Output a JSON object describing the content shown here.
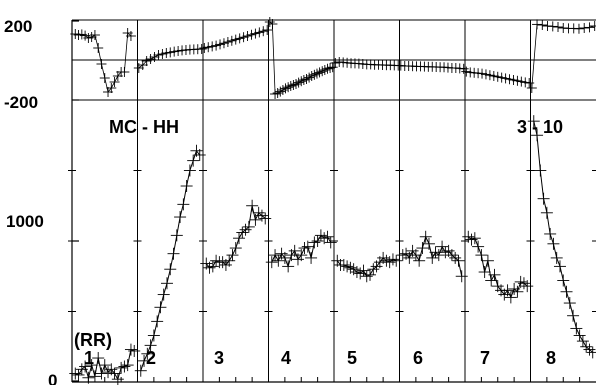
{
  "chart_data": {
    "type": "scatter",
    "title": "MC - HH",
    "corner_label": "3 - 10",
    "annotation": "(RR)",
    "top_panel": {
      "yticks": [
        "200",
        "-200"
      ],
      "ylim": [
        -200,
        200
      ],
      "panels": [
        {
          "x": [
            0.05,
            0.1,
            0.15,
            0.2,
            0.25,
            0.3,
            0.35,
            0.4,
            0.45,
            0.5,
            0.55,
            0.6,
            0.65,
            0.7,
            0.75,
            0.8,
            0.85,
            0.9
          ],
          "y": [
            130,
            125,
            128,
            122,
            110,
            115,
            125,
            60,
            -20,
            -90,
            -160,
            -140,
            -110,
            -80,
            -60,
            -60,
            135,
            120
          ]
        },
        {
          "x": [
            0.02,
            0.08,
            0.14,
            0.2,
            0.26,
            0.32,
            0.38,
            0.44,
            0.5,
            0.56,
            0.62,
            0.68,
            0.74,
            0.8,
            0.86,
            0.92,
            0.98
          ],
          "y": [
            -40,
            -25,
            -5,
            5,
            15,
            25,
            30,
            35,
            38,
            42,
            45,
            48,
            50,
            52,
            53,
            54,
            55
          ]
        },
        {
          "x": [
            0.02,
            0.08,
            0.14,
            0.2,
            0.26,
            0.32,
            0.38,
            0.44,
            0.5,
            0.56,
            0.62,
            0.68,
            0.74,
            0.8,
            0.86,
            0.92,
            0.98
          ],
          "y": [
            60,
            64,
            68,
            72,
            78,
            84,
            90,
            96,
            102,
            108,
            114,
            120,
            126,
            132,
            138,
            144,
            150
          ]
        },
        {
          "x": [
            0.02,
            0.06,
            0.1,
            0.14,
            0.18,
            0.22,
            0.26,
            0.3,
            0.34,
            0.38,
            0.42,
            0.46,
            0.5,
            0.54,
            0.58,
            0.62,
            0.66,
            0.7,
            0.74,
            0.78,
            0.82,
            0.86,
            0.9,
            0.94,
            0.98
          ],
          "y": [
            190,
            180,
            -170,
            -165,
            -158,
            -150,
            -142,
            -136,
            -130,
            -125,
            -120,
            -113,
            -106,
            -100,
            -95,
            -88,
            -80,
            -74,
            -68,
            -62,
            -56,
            -50,
            -44,
            -40,
            -36
          ]
        },
        {
          "x": [
            0.02,
            0.08,
            0.14,
            0.2,
            0.26,
            0.32,
            0.38,
            0.44,
            0.5,
            0.56,
            0.62,
            0.68,
            0.74,
            0.8,
            0.86,
            0.92,
            0.98
          ],
          "y": [
            -15,
            -10,
            -12,
            -14,
            -16,
            -17,
            -18,
            -20,
            -22,
            -22,
            -24,
            -24,
            -25,
            -26,
            -26,
            -27,
            -28
          ]
        },
        {
          "x": [
            0.02,
            0.08,
            0.14,
            0.2,
            0.26,
            0.32,
            0.38,
            0.44,
            0.5,
            0.56,
            0.62,
            0.68,
            0.74,
            0.8,
            0.86,
            0.92,
            0.98
          ],
          "y": [
            -28,
            -30,
            -30,
            -31,
            -32,
            -32,
            -33,
            -34,
            -34,
            -35,
            -36,
            -36,
            -38,
            -40,
            -40,
            -42,
            -44
          ]
        },
        {
          "x": [
            0.02,
            0.08,
            0.14,
            0.2,
            0.26,
            0.32,
            0.38,
            0.44,
            0.5,
            0.56,
            0.62,
            0.68,
            0.74,
            0.8,
            0.86,
            0.92,
            0.98
          ],
          "y": [
            -58,
            -62,
            -64,
            -66,
            -68,
            -72,
            -76,
            -80,
            -84,
            -88,
            -92,
            -96,
            -100,
            -104,
            -108,
            -112,
            -115
          ]
        },
        {
          "x": [
            0.02,
            0.1,
            0.18,
            0.26,
            0.34,
            0.42,
            0.5,
            0.58,
            0.66,
            0.74,
            0.82,
            0.9,
            0.98
          ],
          "y": [
            -140,
            178,
            175,
            170,
            168,
            165,
            160,
            158,
            158,
            156,
            160,
            163,
            170
          ]
        }
      ]
    },
    "main_panel": {
      "yticks": [
        "1000",
        "0"
      ],
      "ylim": [
        0,
        2000
      ],
      "panels": [
        {
          "label": "1",
          "x": [
            0.05,
            0.1,
            0.15,
            0.2,
            0.25,
            0.3,
            0.35,
            0.4,
            0.45,
            0.5,
            0.55,
            0.6,
            0.65,
            0.7,
            0.75,
            0.8,
            0.85,
            0.9,
            0.95
          ],
          "y": [
            60,
            50,
            90,
            110,
            30,
            120,
            40,
            170,
            60,
            120,
            70,
            90,
            60,
            20,
            100,
            110,
            120,
            230,
            220
          ]
        },
        {
          "label": "2",
          "x": [
            0.05,
            0.1,
            0.15,
            0.2,
            0.25,
            0.3,
            0.35,
            0.4,
            0.45,
            0.5,
            0.55,
            0.6,
            0.65,
            0.7,
            0.75,
            0.8,
            0.85,
            0.9,
            0.95
          ],
          "y": [
            80,
            150,
            200,
            260,
            330,
            430,
            530,
            620,
            700,
            800,
            910,
            1040,
            1170,
            1260,
            1390,
            1500,
            1570,
            1640,
            1610
          ]
        },
        {
          "label": "3",
          "x": [
            0.05,
            0.1,
            0.15,
            0.2,
            0.25,
            0.3,
            0.35,
            0.4,
            0.45,
            0.5,
            0.55,
            0.6,
            0.65,
            0.7,
            0.75,
            0.8,
            0.85,
            0.9,
            0.95
          ],
          "y": [
            840,
            810,
            820,
            860,
            850,
            850,
            830,
            860,
            900,
            950,
            1020,
            1060,
            1080,
            1100,
            1250,
            1150,
            1200,
            1180,
            1160
          ]
        },
        {
          "label": "4",
          "x": [
            0.05,
            0.1,
            0.15,
            0.2,
            0.25,
            0.3,
            0.35,
            0.4,
            0.45,
            0.5,
            0.55,
            0.6,
            0.65,
            0.7,
            0.75,
            0.8,
            0.85,
            0.9,
            0.95
          ],
          "y": [
            850,
            900,
            860,
            910,
            880,
            820,
            900,
            930,
            870,
            900,
            950,
            960,
            880,
            990,
            1000,
            1040,
            1020,
            1030,
            990
          ]
        },
        {
          "label": "5",
          "x": [
            0.05,
            0.1,
            0.15,
            0.2,
            0.25,
            0.3,
            0.35,
            0.4,
            0.45,
            0.5,
            0.55,
            0.6,
            0.65,
            0.7,
            0.75,
            0.8,
            0.85,
            0.9,
            0.95
          ],
          "y": [
            860,
            830,
            830,
            820,
            810,
            800,
            780,
            770,
            790,
            750,
            760,
            800,
            820,
            850,
            880,
            860,
            850,
            870,
            860
          ]
        },
        {
          "label": "6",
          "x": [
            0.05,
            0.1,
            0.15,
            0.2,
            0.25,
            0.3,
            0.35,
            0.4,
            0.45,
            0.5,
            0.55,
            0.6,
            0.65,
            0.7,
            0.75,
            0.8,
            0.85,
            0.9,
            0.95
          ],
          "y": [
            900,
            910,
            880,
            930,
            900,
            860,
            950,
            1030,
            980,
            880,
            920,
            900,
            960,
            920,
            930,
            900,
            880,
            860,
            750
          ]
        },
        {
          "label": "7",
          "x": [
            0.05,
            0.1,
            0.15,
            0.2,
            0.25,
            0.3,
            0.35,
            0.4,
            0.45,
            0.5,
            0.55,
            0.6,
            0.65,
            0.7,
            0.75,
            0.8,
            0.85,
            0.9,
            0.95
          ],
          "y": [
            1030,
            1010,
            1020,
            960,
            900,
            780,
            860,
            720,
            760,
            680,
            650,
            620,
            650,
            600,
            660,
            640,
            710,
            700,
            680
          ]
        },
        {
          "label": "8",
          "x": [
            0.05,
            0.1,
            0.15,
            0.2,
            0.25,
            0.3,
            0.35,
            0.4,
            0.45,
            0.5,
            0.55,
            0.6,
            0.65,
            0.7,
            0.75,
            0.8,
            0.85,
            0.9,
            0.95
          ],
          "y": [
            1850,
            1750,
            1500,
            1300,
            1200,
            1050,
            980,
            880,
            820,
            720,
            640,
            560,
            470,
            380,
            330,
            290,
            250,
            230,
            210
          ]
        }
      ]
    }
  }
}
